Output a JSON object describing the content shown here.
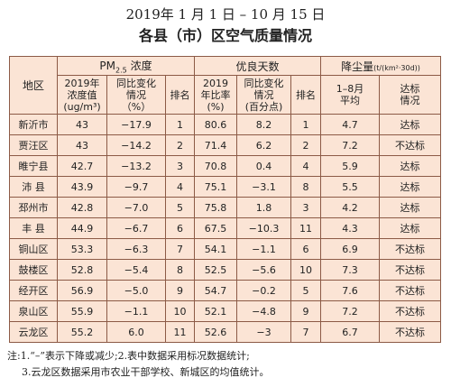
{
  "title": {
    "line1": "2019年 1 月 1 日 – 10 月 15 日",
    "line2": "各县（市）区空气质量情况"
  },
  "table": {
    "header_top": {
      "region": "地区",
      "pm_main": "PM",
      "pm_sub": "2.5",
      "pm_rest": " 浓度",
      "good_days": "优良天数",
      "dust": "降尘量",
      "dust_unit": "(t/(km²·30d))"
    },
    "header_sub": [
      [
        "2019年",
        "浓度值",
        "(ug/m³)"
      ],
      [
        "同比变化",
        "情况",
        "（%）"
      ],
      [
        "排名"
      ],
      [
        "2019",
        "年比率",
        "(%)"
      ],
      [
        "同比变化",
        "情况",
        "(百分点)"
      ],
      [
        "排名"
      ],
      [
        "1–8月",
        "平均"
      ],
      [
        "达标",
        "情况"
      ]
    ],
    "rows": [
      [
        "新沂市",
        "43",
        "−17.9",
        "1",
        "80.6",
        "8.2",
        "1",
        "4.7",
        "达标"
      ],
      [
        "贾汪区",
        "43",
        "−14.2",
        "2",
        "71.4",
        "6.2",
        "2",
        "7.2",
        "不达标"
      ],
      [
        "睢宁县",
        "42.7",
        "−13.2",
        "3",
        "70.8",
        "0.4",
        "4",
        "5.9",
        "达标"
      ],
      [
        "沛 县",
        "43.9",
        "−9.7",
        "4",
        "75.1",
        "−3.1",
        "8",
        "5.5",
        "达标"
      ],
      [
        "邳州市",
        "42.8",
        "−7.0",
        "5",
        "75.8",
        "1.8",
        "3",
        "4.2",
        "达标"
      ],
      [
        "丰 县",
        "44.9",
        "−6.7",
        "6",
        "67.5",
        "−10.3",
        "11",
        "4.3",
        "达标"
      ],
      [
        "铜山区",
        "53.3",
        "−6.3",
        "7",
        "54.1",
        "−1.1",
        "6",
        "6.9",
        "不达标"
      ],
      [
        "鼓楼区",
        "52.8",
        "−5.4",
        "8",
        "52.5",
        "−5.6",
        "10",
        "7.3",
        "不达标"
      ],
      [
        "经开区",
        "56.9",
        "−5.0",
        "9",
        "54.7",
        "−0.2",
        "5",
        "7.6",
        "不达标"
      ],
      [
        "泉山区",
        "55.9",
        "−1.1",
        "10",
        "52.1",
        "−4.8",
        "9",
        "7.2",
        "不达标"
      ],
      [
        "云龙区",
        "55.2",
        "6.0",
        "11",
        "52.6",
        "−3",
        "7",
        "6.7",
        "不达标"
      ]
    ]
  },
  "notes": [
    "注:1.“–”表示下降或减少;2.表中数据采用标况数据统计;",
    "3.云龙区数据采用市农业干部学校、新城区的均值统计。"
  ]
}
